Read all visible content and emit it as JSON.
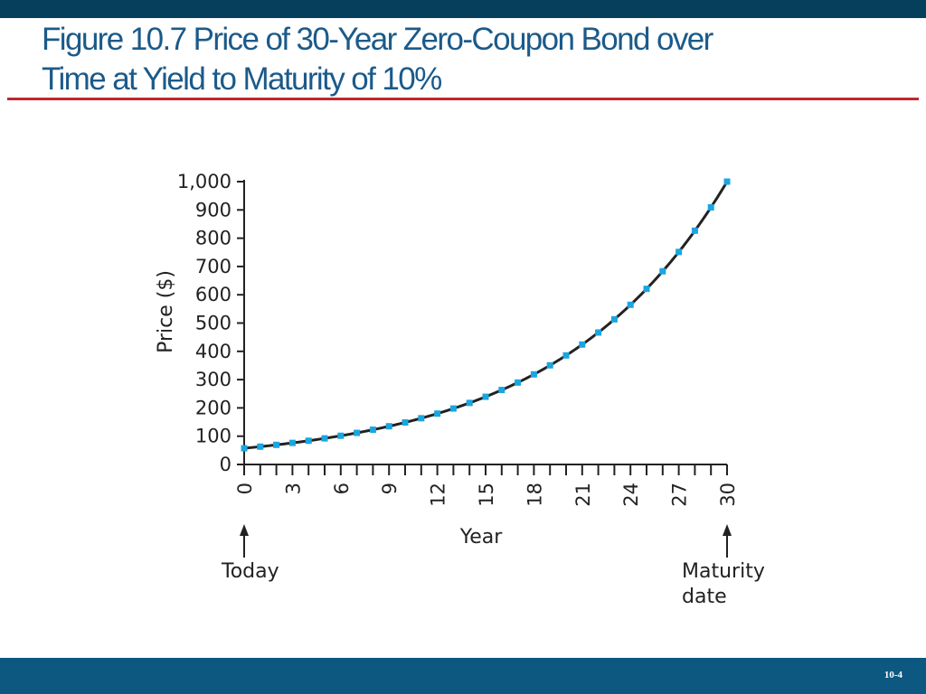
{
  "slide": {
    "title_line1": "Figure 10.7 Price of 30-Year Zero-Coupon Bond over",
    "title_line2": "Time at Yield to Maturity of 10%",
    "slide_number": "10-4"
  },
  "colors": {
    "top_bar": "#063f5c",
    "bottom_bar": "#0c5880",
    "title": "#1b5a8a",
    "rule": "#c0262d",
    "marker": "#1aa6e0",
    "curve": "#222222"
  },
  "chart_data": {
    "type": "line",
    "title": "",
    "xlabel": "Year",
    "ylabel": "Price ($)",
    "xlim": [
      0,
      30
    ],
    "ylim": [
      0,
      1000
    ],
    "x_ticks": [
      0,
      3,
      6,
      9,
      12,
      15,
      18,
      21,
      24,
      27,
      30
    ],
    "y_ticks": [
      0,
      100,
      200,
      300,
      400,
      500,
      600,
      700,
      800,
      900,
      1000
    ],
    "y_tick_labels": [
      "0",
      "100",
      "200",
      "300",
      "400",
      "500",
      "600",
      "700",
      "800",
      "900",
      "1,000"
    ],
    "grid": false,
    "series": [
      {
        "x": [
          0,
          1,
          2,
          3,
          4,
          5,
          6,
          7,
          8,
          9,
          10,
          11,
          12,
          13,
          14,
          15,
          16,
          17,
          18,
          19,
          20,
          21,
          22,
          23,
          24,
          25,
          26,
          27,
          28,
          29,
          30
        ],
        "values": [
          57.31,
          63.04,
          69.34,
          76.28,
          83.9,
          92.3,
          101.53,
          111.68,
          122.85,
          135.13,
          148.64,
          163.51,
          179.86,
          197.84,
          217.63,
          239.39,
          263.33,
          289.66,
          318.63,
          350.49,
          385.54,
          424.1,
          466.51,
          513.16,
          564.47,
          620.92,
          683.01,
          751.31,
          826.45,
          909.09,
          1000.0
        ]
      }
    ],
    "annotations": [
      {
        "text": "Today",
        "x": 0
      },
      {
        "text": "Maturity date",
        "x": 30
      }
    ]
  }
}
